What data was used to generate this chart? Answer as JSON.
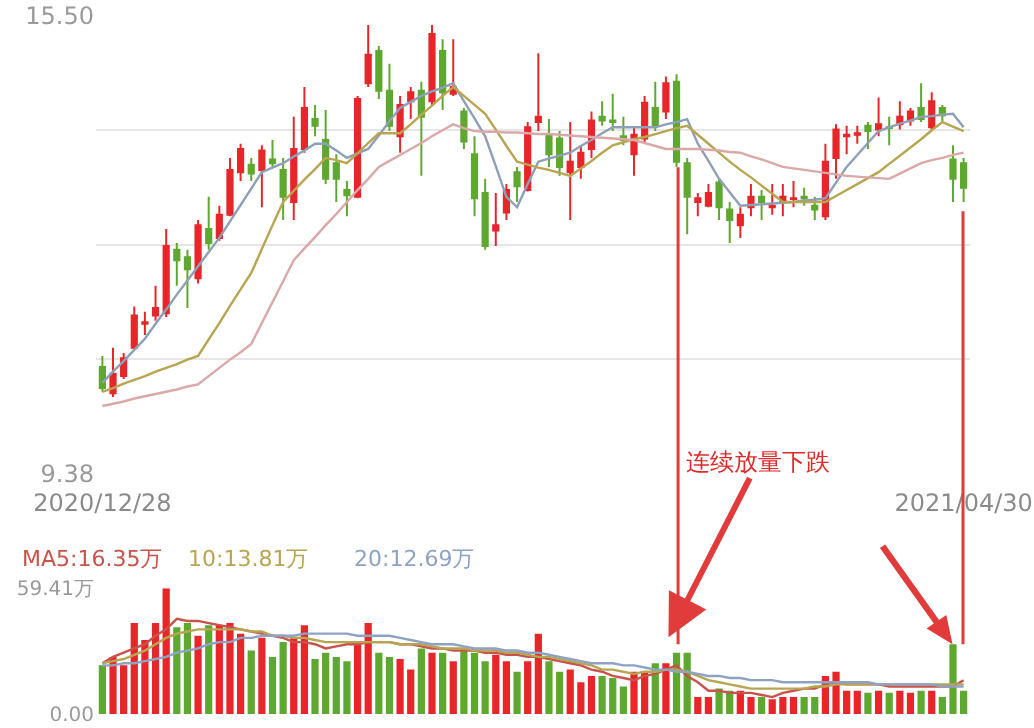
{
  "chart_data": [
    {
      "type": "candlestick",
      "categories": [
        "2020/12/28",
        null,
        null,
        null,
        null,
        null,
        null,
        null,
        null,
        null,
        null,
        null,
        null,
        null,
        null,
        null,
        null,
        null,
        null,
        null,
        null,
        null,
        null,
        null,
        null,
        null,
        null,
        null,
        null,
        null,
        null,
        null,
        null,
        null,
        null,
        null,
        null,
        null,
        null,
        null,
        null,
        null,
        null,
        null,
        null,
        null,
        null,
        null,
        null,
        null,
        null,
        null,
        null,
        null,
        null,
        null,
        null,
        null,
        null,
        null,
        null,
        null,
        null,
        null,
        null,
        null,
        null,
        null,
        null,
        null,
        null,
        null,
        null,
        null,
        null,
        null,
        null,
        null,
        null,
        null,
        null,
        "2021/04/30"
      ],
      "ohlc": [
        [
          10.8,
          10.95,
          10.47,
          10.52
        ],
        [
          10.45,
          11.06,
          10.4,
          10.71
        ],
        [
          10.68,
          10.99,
          10.64,
          10.92
        ],
        [
          11.06,
          11.61,
          11.04,
          11.49
        ],
        [
          11.38,
          11.54,
          11.23,
          11.4
        ],
        [
          11.49,
          11.89,
          11.42,
          11.59
        ],
        [
          11.52,
          12.65,
          11.47,
          12.42
        ],
        [
          12.37,
          12.46,
          11.89,
          12.23
        ],
        [
          12.27,
          12.37,
          11.59,
          12.11
        ],
        [
          11.99,
          12.77,
          11.92,
          12.7
        ],
        [
          12.65,
          13.08,
          12.37,
          12.46
        ],
        [
          12.53,
          12.96,
          12.49,
          12.84
        ],
        [
          12.84,
          13.6,
          12.82,
          13.44
        ],
        [
          13.41,
          13.79,
          13.29,
          13.72
        ],
        [
          13.51,
          13.6,
          13.29,
          13.39
        ],
        [
          13.44,
          13.77,
          12.94,
          13.7
        ],
        [
          13.58,
          13.84,
          13.48,
          13.53
        ],
        [
          13.44,
          13.6,
          12.77,
          13.08
        ],
        [
          13.01,
          14.15,
          12.77,
          13.72
        ],
        [
          13.72,
          14.55,
          13.67,
          14.27
        ],
        [
          14.12,
          14.31,
          13.89,
          14.03
        ],
        [
          13.84,
          14.24,
          13.25,
          13.32
        ],
        [
          13.53,
          13.65,
          13.01,
          13.32
        ],
        [
          13.17,
          13.29,
          12.82,
          13.1
        ],
        [
          13.08,
          14.43,
          13.06,
          14.39
        ],
        [
          14.6,
          15.38,
          14.55,
          14.98
        ],
        [
          15.03,
          15.1,
          14.39,
          14.5
        ],
        [
          14.5,
          14.86,
          13.96,
          14.03
        ],
        [
          13.89,
          14.43,
          13.67,
          14.31
        ],
        [
          14.36,
          14.55,
          14.12,
          14.48
        ],
        [
          14.5,
          14.62,
          13.36,
          14.15
        ],
        [
          14.36,
          15.38,
          14.31,
          15.26
        ],
        [
          15.03,
          15.19,
          14.24,
          14.48
        ],
        [
          14.46,
          15.19,
          14.43,
          14.55
        ],
        [
          14.22,
          14.27,
          13.72,
          13.82
        ],
        [
          13.65,
          13.89,
          12.82,
          13.06
        ],
        [
          13.13,
          13.32,
          12.37,
          12.42
        ],
        [
          12.63,
          13.13,
          12.42,
          12.7
        ],
        [
          12.87,
          13.25,
          12.77,
          13.17
        ],
        [
          13.41,
          13.48,
          13.01,
          13.22
        ],
        [
          13.17,
          14.08,
          13.15,
          14.01
        ],
        [
          14.08,
          15.0,
          13.96,
          14.15
        ],
        [
          13.91,
          14.12,
          13.48,
          13.65
        ],
        [
          13.86,
          13.96,
          13.36,
          13.48
        ],
        [
          13.41,
          14.08,
          12.77,
          13.55
        ],
        [
          13.48,
          13.77,
          13.32,
          13.67
        ],
        [
          13.72,
          14.22,
          13.6,
          14.1
        ],
        [
          14.15,
          14.36,
          14.03,
          14.1
        ],
        [
          14.1,
          14.46,
          13.96,
          14.08
        ],
        [
          13.89,
          14.15,
          13.77,
          13.84
        ],
        [
          13.65,
          14.01,
          13.36,
          13.91
        ],
        [
          13.86,
          14.43,
          13.79,
          14.34
        ],
        [
          14.27,
          14.62,
          13.96,
          14.03
        ],
        [
          14.22,
          14.69,
          14.12,
          14.6
        ],
        [
          14.62,
          14.72,
          13.48,
          13.55
        ],
        [
          13.53,
          13.6,
          12.58,
          13.08
        ],
        [
          13.01,
          13.13,
          12.82,
          13.06
        ],
        [
          12.96,
          13.25,
          12.94,
          13.13
        ],
        [
          13.27,
          13.32,
          12.77,
          12.94
        ],
        [
          12.91,
          13.01,
          12.46,
          12.77
        ],
        [
          12.7,
          12.94,
          12.53,
          12.84
        ],
        [
          12.94,
          13.25,
          12.82,
          13.08
        ],
        [
          13.08,
          13.17,
          12.77,
          13.01
        ],
        [
          12.94,
          13.25,
          12.84,
          12.96
        ],
        [
          13.01,
          13.25,
          12.82,
          13.08
        ],
        [
          13.05,
          13.29,
          12.94,
          13.06
        ],
        [
          13.08,
          13.2,
          12.96,
          13.06
        ],
        [
          12.96,
          13.08,
          12.77,
          12.91
        ],
        [
          12.82,
          13.79,
          12.77,
          13.55
        ],
        [
          13.6,
          14.05,
          13.32,
          13.98
        ],
        [
          13.89,
          14.03,
          13.65,
          13.91
        ],
        [
          13.91,
          14.03,
          13.79,
          13.93
        ],
        [
          14.03,
          14.08,
          13.72,
          13.96
        ],
        [
          13.98,
          14.41,
          13.89,
          14.05
        ],
        [
          14.01,
          14.15,
          13.77,
          14.0
        ],
        [
          14.05,
          14.36,
          13.98,
          14.15
        ],
        [
          14.1,
          14.27,
          14.03,
          14.22
        ],
        [
          14.27,
          14.6,
          14.08,
          14.12
        ],
        [
          14.01,
          14.48,
          13.96,
          14.36
        ],
        [
          14.27,
          14.31,
          14.08,
          14.17
        ],
        [
          13.58,
          13.77,
          13.01,
          13.32
        ],
        [
          13.53,
          13.6,
          13.01,
          13.2
        ]
      ],
      "ylim": [
        9.38,
        15.5
      ],
      "yticks": [
        {
          "value": 15.5,
          "label": "15.50"
        },
        {
          "value": 13.97,
          "label": null
        },
        {
          "value": 12.44,
          "label": null
        },
        {
          "value": 10.91,
          "label": null
        },
        9.38
      ],
      "grid": "y",
      "annotations": [
        "连续放量下跌"
      ],
      "series": [
        {
          "type": "line",
          "color": "#8e9fb8",
          "values": [
            10.59,
            10.74,
            10.88,
            11.03,
            11.18,
            11.38,
            11.57,
            11.77,
            11.96,
            12.15,
            12.34,
            12.53,
            12.75,
            12.97,
            13.19,
            13.41,
            13.47,
            13.53,
            13.62,
            13.7,
            13.79,
            13.79,
            13.7,
            13.6,
            13.66,
            13.72,
            13.9,
            14.09,
            14.27,
            14.35,
            14.43,
            14.49,
            14.54,
            14.6,
            14.36,
            14.13,
            13.89,
            13.49,
            13.08,
            12.94,
            13.25,
            13.55,
            13.59,
            13.63,
            13.67,
            13.76,
            13.84,
            13.93,
            14.01,
            14.01,
            14.01,
            14.01,
            14.01,
            14.05,
            14.08,
            14.12,
            13.79,
            13.56,
            13.32,
            13.14,
            12.96,
            12.97,
            12.98,
            12.99,
            13.0,
            13.01,
            13.03,
            13.04,
            13.06,
            13.27,
            13.48,
            13.64,
            13.8,
            13.96,
            14.01,
            14.06,
            14.1,
            14.15,
            14.16,
            14.18,
            14.19,
            14.01
          ]
        },
        {
          "type": "line",
          "color": "#b8a552",
          "values": [
            10.47,
            10.52,
            10.58,
            10.63,
            10.68,
            10.74,
            10.79,
            10.84,
            10.9,
            10.95,
            11.17,
            11.39,
            11.62,
            11.84,
            12.06,
            12.38,
            12.7,
            13.01,
            13.16,
            13.31,
            13.45,
            13.6,
            13.57,
            13.53,
            13.66,
            13.8,
            13.93,
            13.93,
            13.93,
            14.05,
            14.18,
            14.3,
            14.43,
            14.55,
            14.43,
            14.31,
            14.19,
            13.98,
            13.76,
            13.55,
            13.51,
            13.47,
            13.44,
            13.4,
            13.36,
            13.46,
            13.56,
            13.67,
            13.77,
            13.81,
            13.85,
            13.88,
            13.92,
            13.96,
            14.0,
            14.03,
            13.91,
            13.79,
            13.67,
            13.55,
            13.44,
            13.34,
            13.23,
            13.12,
            13.01,
            13.01,
            13.01,
            13.01,
            13.01,
            13.09,
            13.17,
            13.25,
            13.33,
            13.41,
            13.52,
            13.63,
            13.74,
            13.85,
            13.97,
            14.08,
            14.02,
            13.96
          ]
        },
        {
          "type": "line",
          "color": "#dba8a8",
          "values": [
            10.28,
            10.31,
            10.34,
            10.38,
            10.41,
            10.44,
            10.47,
            10.5,
            10.54,
            10.57,
            10.68,
            10.79,
            10.9,
            11.0,
            11.11,
            11.39,
            11.67,
            11.95,
            12.23,
            12.39,
            12.54,
            12.7,
            12.85,
            13.01,
            13.17,
            13.32,
            13.48,
            13.56,
            13.64,
            13.72,
            13.8,
            13.89,
            13.97,
            14.05,
            14.0,
            13.96,
            13.95,
            13.95,
            13.94,
            13.94,
            13.93,
            13.92,
            13.92,
            13.91,
            13.9,
            13.89,
            13.88,
            13.87,
            13.86,
            13.85,
            13.84,
            13.8,
            13.76,
            13.72,
            13.72,
            13.72,
            13.72,
            13.71,
            13.7,
            13.68,
            13.67,
            13.62,
            13.58,
            13.53,
            13.48,
            13.46,
            13.44,
            13.42,
            13.4,
            13.38,
            13.36,
            13.35,
            13.34,
            13.33,
            13.32,
            13.39,
            13.46,
            13.53,
            13.57,
            13.6,
            13.64,
            13.67
          ]
        }
      ]
    },
    {
      "type": "bar",
      "tick_labels": "y",
      "categories": [
        null,
        null,
        null,
        null,
        null,
        null,
        null,
        null,
        null,
        null,
        null,
        null,
        null,
        null,
        null,
        null,
        null,
        null,
        null,
        null,
        null,
        null,
        null,
        null,
        null,
        null,
        null,
        null,
        null,
        null,
        null,
        null,
        null,
        null,
        null,
        null,
        null,
        null,
        null,
        null,
        null,
        null,
        null,
        null,
        null,
        null,
        null,
        null,
        null,
        null,
        null,
        null,
        null,
        null,
        null,
        null,
        null,
        null,
        null,
        null,
        null,
        null,
        null,
        null,
        null,
        null,
        null,
        null,
        null,
        null,
        null,
        null,
        null,
        null,
        null,
        null,
        null,
        null,
        null,
        null,
        null,
        null
      ],
      "values": [
        23,
        27,
        23,
        43,
        35,
        43,
        59.41,
        41,
        43,
        37,
        42,
        42,
        43,
        38,
        30,
        36,
        27,
        34,
        36,
        42,
        26,
        29,
        27,
        25,
        33,
        43,
        29,
        27,
        26,
        21,
        31,
        29,
        29,
        25,
        30,
        29,
        25,
        28,
        25,
        20,
        25,
        38,
        25,
        20,
        21,
        15,
        18,
        18,
        17,
        13,
        20,
        20,
        24,
        24,
        29,
        29,
        8,
        8,
        12,
        11,
        11,
        8,
        8,
        7,
        8,
        8,
        8,
        8,
        18,
        20,
        11,
        11,
        10,
        11,
        10,
        11,
        10,
        11,
        11,
        8,
        33,
        11
      ],
      "colors": [
        "#5ea82f",
        "#e8262a",
        "#e8262a",
        "#e8262a",
        "#e8262a",
        "#e8262a",
        "#e8262a",
        "#5ea82f",
        "#5ea82f",
        "#e8262a",
        "#5ea82f",
        "#e8262a",
        "#e8262a",
        "#e8262a",
        "#5ea82f",
        "#e8262a",
        "#5ea82f",
        "#5ea82f",
        "#e8262a",
        "#e8262a",
        "#5ea82f",
        "#5ea82f",
        "#5ea82f",
        "#5ea82f",
        "#e8262a",
        "#e8262a",
        "#5ea82f",
        "#5ea82f",
        "#e8262a",
        "#e8262a",
        "#5ea82f",
        "#e8262a",
        "#5ea82f",
        "#e8262a",
        "#5ea82f",
        "#5ea82f",
        "#5ea82f",
        "#e8262a",
        "#e8262a",
        "#5ea82f",
        "#e8262a",
        "#e8262a",
        "#5ea82f",
        "#5ea82f",
        "#e8262a",
        "#e8262a",
        "#e8262a",
        "#5ea82f",
        "#5ea82f",
        "#5ea82f",
        "#e8262a",
        "#e8262a",
        "#5ea82f",
        "#e8262a",
        "#5ea82f",
        "#5ea82f",
        "#e8262a",
        "#e8262a",
        "#5ea82f",
        "#5ea82f",
        "#e8262a",
        "#e8262a",
        "#5ea82f",
        "#e8262a",
        "#e8262a",
        "#e8262a",
        "#5ea82f",
        "#5ea82f",
        "#e8262a",
        "#e8262a",
        "#e8262a",
        "#e8262a",
        "#5ea82f",
        "#e8262a",
        "#5ea82f",
        "#e8262a",
        "#e8262a",
        "#5ea82f",
        "#e8262a",
        "#5ea82f",
        "#5ea82f",
        "#5ea82f"
      ],
      "ylim": [
        0,
        59.41
      ],
      "yticks": [
        {
          "value": 59.41,
          "label": "59.41万"
        },
        {
          "value": 0,
          "label": "0.00"
        }
      ]
    },
    {
      "type": "line",
      "tick_labels": false,
      "categories": [
        null,
        null,
        null,
        null,
        null,
        null,
        null,
        null,
        null,
        null,
        null,
        null,
        null,
        null,
        null,
        null,
        null,
        null,
        null,
        null,
        null,
        null,
        null,
        null,
        null,
        null,
        null,
        null,
        null,
        null,
        null,
        null,
        null,
        null,
        null,
        null,
        null,
        null,
        null,
        null,
        null,
        null,
        null,
        null,
        null,
        null,
        null,
        null,
        null,
        null,
        null,
        null,
        null,
        null,
        null,
        null,
        null,
        null,
        null,
        null,
        null,
        null,
        null,
        null,
        null,
        null,
        null,
        null,
        null,
        null,
        null,
        null,
        null,
        null,
        null,
        null,
        null,
        null,
        null,
        null,
        null,
        null
      ],
      "ylim": [
        0,
        59.41
      ],
      "series": [
        {
          "name": "MA5:16.35万",
          "color": "#c8534a",
          "values": [
            24,
            27,
            29,
            31,
            33,
            37,
            40,
            45,
            44,
            44,
            43,
            42,
            41,
            40,
            39,
            38,
            37,
            36,
            34,
            34,
            33,
            31,
            32,
            33,
            33,
            34,
            34,
            34,
            33,
            33,
            32,
            31,
            31,
            30,
            30,
            30,
            29,
            29,
            28,
            28,
            27,
            27,
            26,
            25,
            24,
            23,
            21,
            20,
            18,
            17,
            16,
            18,
            19,
            21,
            23,
            18,
            15,
            11,
            11,
            10,
            10,
            10,
            9,
            8,
            10,
            11,
            12,
            12,
            14,
            15,
            14,
            14,
            14,
            14,
            13,
            13,
            13,
            13,
            13,
            13,
            13,
            16
          ]
        },
        {
          "name": "10:13.81万",
          "color": "#b8a552",
          "values": [
            24,
            25,
            26,
            28,
            30,
            33,
            36,
            38,
            39,
            40,
            40,
            40,
            40,
            40,
            39,
            39,
            37,
            37,
            36,
            36,
            35,
            34,
            34,
            34,
            34,
            34,
            34,
            34,
            33,
            33,
            33,
            32,
            31,
            31,
            31,
            30,
            30,
            30,
            29,
            29,
            28,
            27,
            27,
            26,
            25,
            24,
            23,
            21,
            21,
            20,
            19,
            20,
            20,
            21,
            21,
            20,
            18,
            16,
            15,
            14,
            13,
            12,
            12,
            12,
            12,
            12,
            12,
            13,
            13,
            14,
            14,
            14,
            14,
            14,
            14,
            14,
            14,
            14,
            14,
            14,
            14,
            14
          ]
        },
        {
          "name": "20:12.69万",
          "color": "#8ea3c4",
          "values": [
            23,
            23,
            24,
            24,
            25,
            26,
            27,
            29,
            30,
            31,
            33,
            34,
            34,
            36,
            36,
            37,
            37,
            37,
            37,
            38,
            38,
            38,
            38,
            38,
            37,
            37,
            37,
            37,
            36,
            35,
            34,
            33,
            33,
            33,
            32,
            31,
            31,
            31,
            30,
            30,
            29,
            29,
            28,
            27,
            26,
            25,
            24,
            24,
            24,
            23,
            23,
            22,
            21,
            21,
            20,
            20,
            19,
            18,
            18,
            17,
            17,
            16,
            16,
            16,
            15,
            15,
            15,
            15,
            15,
            15,
            15,
            15,
            15,
            14,
            14,
            14,
            14,
            14,
            14,
            13,
            13,
            13
          ]
        }
      ]
    }
  ]
}
